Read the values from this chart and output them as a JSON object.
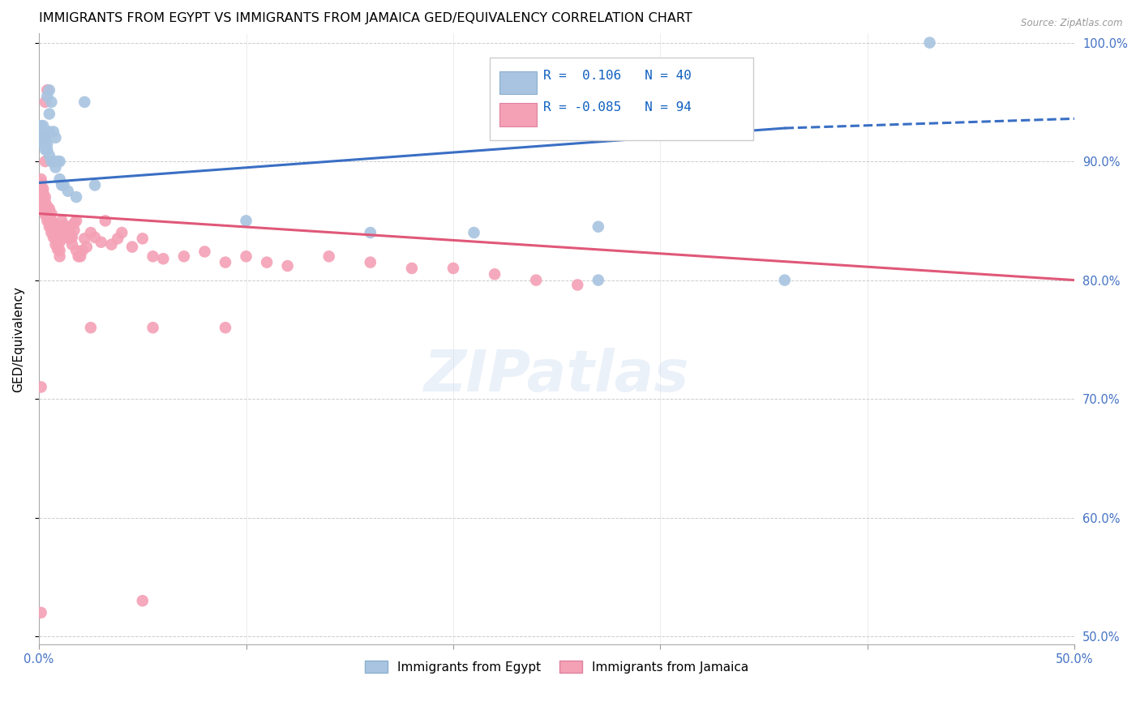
{
  "title": "IMMIGRANTS FROM EGYPT VS IMMIGRANTS FROM JAMAICA GED/EQUIVALENCY CORRELATION CHART",
  "source": "Source: ZipAtlas.com",
  "ylabel": "GED/Equivalency",
  "x_min": 0.0,
  "x_max": 0.5,
  "y_min": 0.493,
  "y_max": 1.008,
  "egypt_color": "#a8c4e0",
  "egypt_edge": "#6a9fc0",
  "jamaica_color": "#f4a0b5",
  "jamaica_edge": "#e07090",
  "egypt_line_color": "#3a6fc4",
  "jamaica_line_color": "#e05878",
  "egypt_R": 0.106,
  "egypt_N": 40,
  "jamaica_R": -0.085,
  "jamaica_N": 94,
  "watermark": "ZIPatlas",
  "egypt_line_x0": 0.0,
  "egypt_line_y0": 0.882,
  "egypt_line_x1": 0.36,
  "egypt_line_y1": 0.928,
  "egypt_line_x2": 0.5,
  "egypt_line_y2": 0.936,
  "jamaica_line_x0": 0.0,
  "jamaica_line_y0": 0.856,
  "jamaica_line_x1": 0.5,
  "jamaica_line_y1": 0.8,
  "egypt_points_x": [
    0.001,
    0.001,
    0.001,
    0.002,
    0.002,
    0.002,
    0.002,
    0.003,
    0.003,
    0.003,
    0.003,
    0.004,
    0.004,
    0.004,
    0.005,
    0.005,
    0.005,
    0.005,
    0.006,
    0.006,
    0.007,
    0.007,
    0.008,
    0.008,
    0.009,
    0.01,
    0.01,
    0.011,
    0.012,
    0.014,
    0.018,
    0.022,
    0.027,
    0.1,
    0.16,
    0.21,
    0.27,
    0.27,
    0.36,
    0.43
  ],
  "egypt_points_y": [
    0.92,
    0.925,
    0.93,
    0.915,
    0.92,
    0.925,
    0.93,
    0.91,
    0.915,
    0.92,
    0.925,
    0.91,
    0.915,
    0.955,
    0.905,
    0.925,
    0.94,
    0.96,
    0.9,
    0.95,
    0.9,
    0.925,
    0.895,
    0.92,
    0.9,
    0.885,
    0.9,
    0.88,
    0.88,
    0.875,
    0.87,
    0.95,
    0.88,
    0.85,
    0.84,
    0.84,
    0.845,
    0.8,
    0.8,
    1.0
  ],
  "jamaica_points_x": [
    0.001,
    0.001,
    0.001,
    0.001,
    0.001,
    0.002,
    0.002,
    0.002,
    0.002,
    0.002,
    0.002,
    0.003,
    0.003,
    0.003,
    0.003,
    0.003,
    0.004,
    0.004,
    0.004,
    0.004,
    0.005,
    0.005,
    0.005,
    0.005,
    0.006,
    0.006,
    0.006,
    0.006,
    0.007,
    0.007,
    0.007,
    0.008,
    0.008,
    0.008,
    0.009,
    0.009,
    0.01,
    0.01,
    0.01,
    0.01,
    0.011,
    0.011,
    0.012,
    0.012,
    0.013,
    0.014,
    0.014,
    0.015,
    0.015,
    0.016,
    0.016,
    0.017,
    0.017,
    0.018,
    0.018,
    0.019,
    0.02,
    0.021,
    0.022,
    0.023,
    0.025,
    0.027,
    0.03,
    0.032,
    0.035,
    0.038,
    0.04,
    0.045,
    0.05,
    0.055,
    0.06,
    0.07,
    0.08,
    0.09,
    0.1,
    0.11,
    0.12,
    0.14,
    0.16,
    0.18,
    0.2,
    0.22,
    0.24,
    0.26,
    0.09,
    0.055,
    0.025,
    0.003,
    0.001,
    0.001,
    0.002,
    0.003,
    0.004,
    0.05
  ],
  "jamaica_points_y": [
    0.87,
    0.875,
    0.878,
    0.882,
    0.885,
    0.86,
    0.862,
    0.865,
    0.87,
    0.874,
    0.877,
    0.855,
    0.86,
    0.863,
    0.866,
    0.87,
    0.85,
    0.854,
    0.858,
    0.862,
    0.845,
    0.85,
    0.855,
    0.86,
    0.84,
    0.844,
    0.85,
    0.856,
    0.836,
    0.842,
    0.848,
    0.83,
    0.836,
    0.842,
    0.826,
    0.832,
    0.82,
    0.825,
    0.832,
    0.838,
    0.845,
    0.85,
    0.84,
    0.846,
    0.836,
    0.84,
    0.845,
    0.835,
    0.84,
    0.83,
    0.836,
    0.842,
    0.848,
    0.825,
    0.85,
    0.82,
    0.82,
    0.825,
    0.835,
    0.828,
    0.84,
    0.836,
    0.832,
    0.85,
    0.83,
    0.835,
    0.84,
    0.828,
    0.835,
    0.82,
    0.818,
    0.82,
    0.824,
    0.815,
    0.82,
    0.815,
    0.812,
    0.82,
    0.815,
    0.81,
    0.81,
    0.805,
    0.8,
    0.796,
    0.76,
    0.76,
    0.76,
    0.95,
    0.71,
    0.52,
    0.92,
    0.9,
    0.96,
    0.53
  ]
}
